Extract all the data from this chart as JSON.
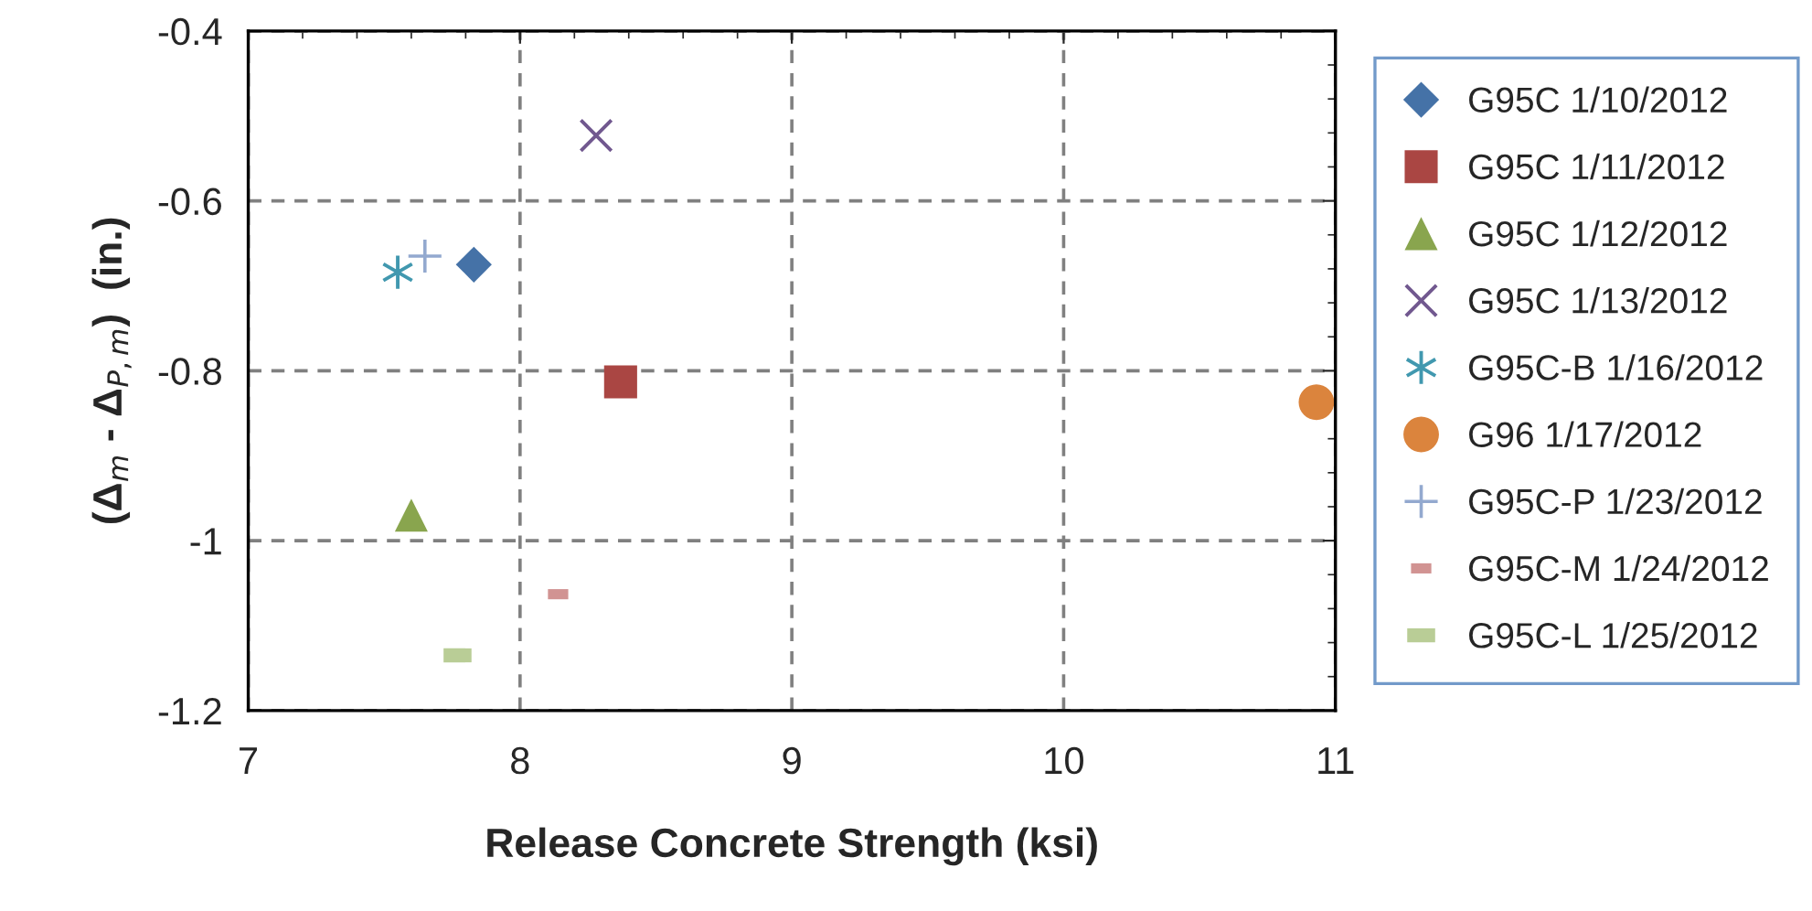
{
  "chart_data": {
    "type": "scatter",
    "xlabel": "Release Concrete Strength (ksi)",
    "ylabel": "(Δ$_{m}$ - Δ$_{P,m}$)  (in.)",
    "xlim": [
      7,
      11
    ],
    "xticks": [
      7,
      8,
      9,
      10,
      11
    ],
    "ylim": [
      -1.2,
      -0.4
    ],
    "yticks": [
      -1.2,
      -1,
      -0.8,
      -0.6,
      -0.4
    ],
    "grid": true,
    "legend": "right",
    "series": [
      {
        "name": "G95C 1/10/2012",
        "color": "#4572a7",
        "marker": "diamond",
        "x": [
          7.83
        ],
        "values": [
          -0.675
        ]
      },
      {
        "name": "G95C 1/11/2012",
        "color": "#aa4643",
        "marker": "square",
        "x": [
          8.37
        ],
        "values": [
          -0.813
        ]
      },
      {
        "name": "G95C 1/12/2012",
        "color": "#89a54e",
        "marker": "triangle",
        "x": [
          7.6
        ],
        "values": [
          -0.97
        ]
      },
      {
        "name": "G95C 1/13/2012",
        "color": "#71588f",
        "marker": "cross",
        "x": [
          8.28
        ],
        "values": [
          -0.523
        ]
      },
      {
        "name": "G95C-B 1/16/2012",
        "color": "#4198af",
        "marker": "cross",
        "x": [
          7.55
        ],
        "values": [
          -0.684
        ]
      },
      {
        "name": "G96 1/17/2012",
        "color": "#db843d",
        "marker": "circle",
        "x": [
          10.93
        ],
        "values": [
          -0.837
        ]
      },
      {
        "name": "G95C-P 1/23/2012",
        "color": "#93a9cf",
        "marker": "cross",
        "x": [
          7.65
        ],
        "values": [
          -0.665
        ]
      },
      {
        "name": "G95C-M 1/24/2012",
        "color": "#d19392",
        "marker": "square",
        "x": [
          8.14
        ],
        "values": [
          -1.063
        ]
      },
      {
        "name": "G95C-L 1/25/2012",
        "color": "#b9cd96",
        "marker": "square",
        "x": [
          7.77
        ],
        "values": [
          -1.135
        ]
      }
    ]
  }
}
